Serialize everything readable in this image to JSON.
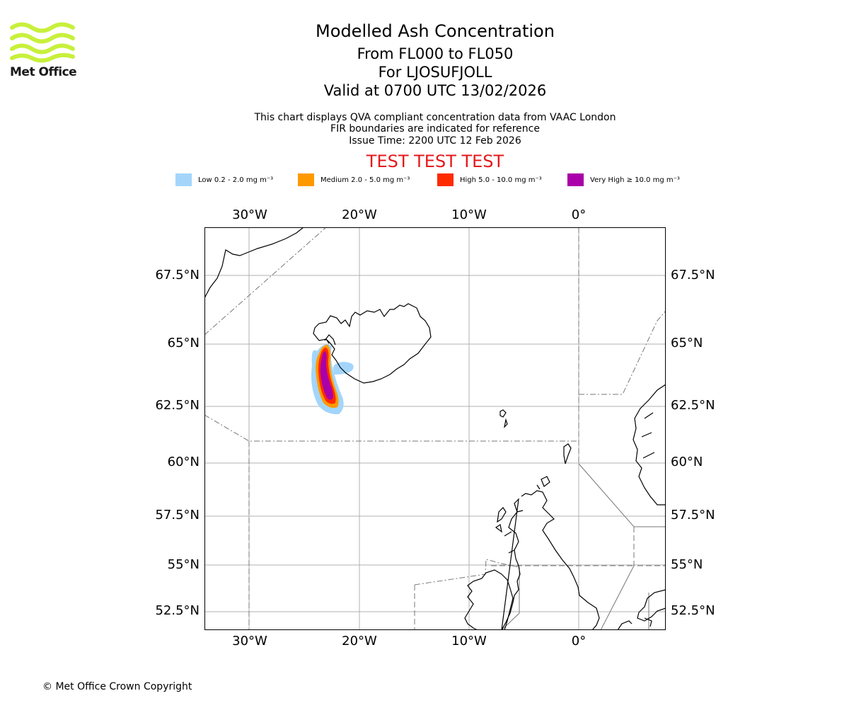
{
  "header": {
    "title": "Modelled Ash Concentration",
    "flight_levels": "From FL000 to FL050",
    "volcano": "For LJOSUFJOLL",
    "valid": "Valid at 0700 UTC 13/02/2026",
    "note1": "This chart displays QVA compliant concentration data from VAAC London",
    "note2": "FIR boundaries are indicated for reference",
    "issue": "Issue Time: 2200 UTC 12 Feb 2026",
    "test_banner": "TEST TEST TEST"
  },
  "logo": {
    "text": "Met Office",
    "color": "#c8f03c"
  },
  "legend": [
    {
      "label": "Low 0.2 - 2.0 mg m⁻³",
      "color": "#a3d5fb"
    },
    {
      "label": "Medium 2.0 - 5.0 mg m⁻³",
      "color": "#ff9900"
    },
    {
      "label": "High 5.0 - 10.0 mg m⁻³",
      "color": "#ff2a00"
    },
    {
      "label": "Very High ≥ 10.0 mg m⁻³",
      "color": "#aa00aa"
    }
  ],
  "map": {
    "lon_labels": [
      "30°W",
      "20°W",
      "10°W",
      "0°"
    ],
    "lat_labels": [
      "67.5°N",
      "65°N",
      "62.5°N",
      "60°N",
      "57.5°N",
      "55°N",
      "52.5°N"
    ]
  },
  "footer": {
    "copyright": "© Met Office Crown Copyright"
  }
}
